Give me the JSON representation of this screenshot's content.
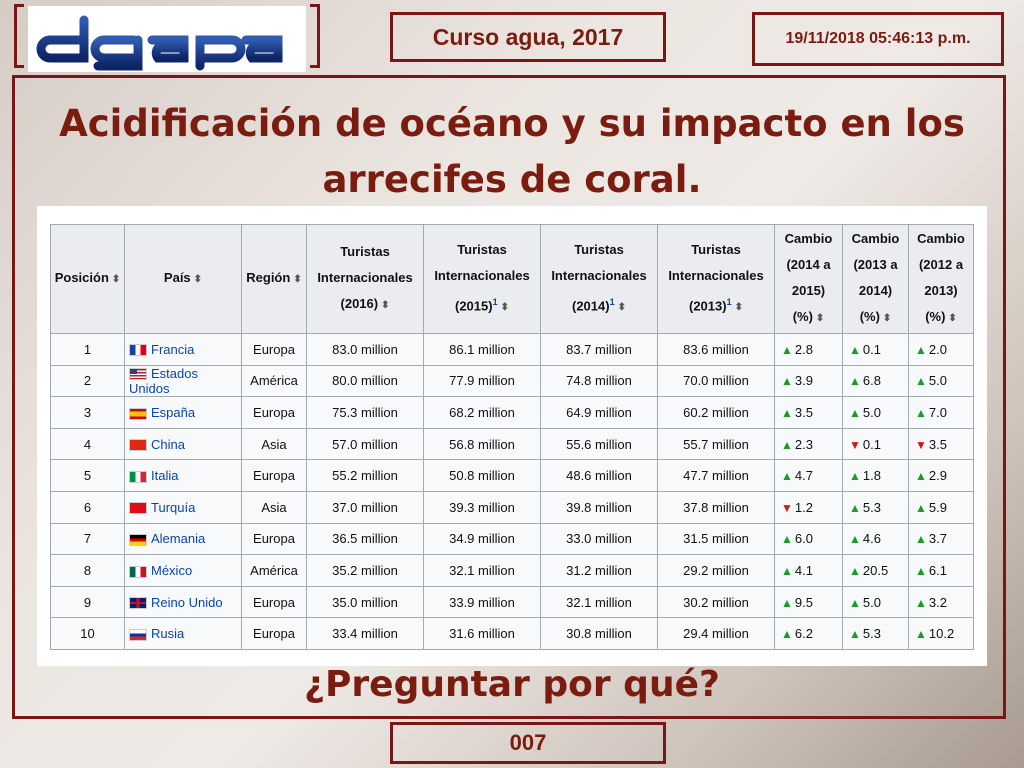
{
  "header": {
    "logo_text": "dgapa",
    "course": "Curso agua, 2017",
    "datetime": "19/11/2018 05:46:13 p.m."
  },
  "title": "Acidificación de océano y su impacto en los arrecifes de coral.",
  "table": {
    "columns": [
      {
        "label": "Posición"
      },
      {
        "label": "País"
      },
      {
        "label": "Región"
      },
      {
        "label": "Turistas Internacionales (2016)"
      },
      {
        "label": "Turistas Internacionales (2015)",
        "sup": "1"
      },
      {
        "label": "Turistas Internacionales (2014)",
        "sup": "1"
      },
      {
        "label": "Turistas Internacionales (2013)",
        "sup": "1"
      },
      {
        "label": "Cambio (2014 a 2015) (%)"
      },
      {
        "label": "Cambio (2013 a 2014) (%)"
      },
      {
        "label": "Cambio (2012 a 2013) (%)"
      }
    ],
    "rows": [
      {
        "pos": "1",
        "pais": "Francia",
        "flag": "fr",
        "region": "Europa",
        "t2016": "83.0 million",
        "t2015": "86.1 million",
        "t2014": "83.7 million",
        "t2013": "83.6 million",
        "c1": {
          "dir": "up",
          "v": "2.8"
        },
        "c2": {
          "dir": "up",
          "v": "0.1"
        },
        "c3": {
          "dir": "up",
          "v": "2.0"
        }
      },
      {
        "pos": "2",
        "pais": "Estados Unidos",
        "flag": "us",
        "region": "América",
        "t2016": "80.0 million",
        "t2015": "77.9 million",
        "t2014": "74.8 million",
        "t2013": "70.0 million",
        "c1": {
          "dir": "up",
          "v": "3.9"
        },
        "c2": {
          "dir": "up",
          "v": "6.8"
        },
        "c3": {
          "dir": "up",
          "v": "5.0"
        }
      },
      {
        "pos": "3",
        "pais": "España",
        "flag": "es",
        "region": "Europa",
        "t2016": "75.3 million",
        "t2015": "68.2 million",
        "t2014": "64.9 million",
        "t2013": "60.2 million",
        "c1": {
          "dir": "up",
          "v": "3.5"
        },
        "c2": {
          "dir": "up",
          "v": "5.0"
        },
        "c3": {
          "dir": "up",
          "v": "7.0"
        }
      },
      {
        "pos": "4",
        "pais": "China",
        "flag": "cn",
        "region": "Asia",
        "t2016": "57.0 million",
        "t2015": "56.8 million",
        "t2014": "55.6 million",
        "t2013": "55.7 million",
        "c1": {
          "dir": "up",
          "v": "2.3"
        },
        "c2": {
          "dir": "down",
          "v": "0.1"
        },
        "c3": {
          "dir": "down",
          "v": "3.5"
        }
      },
      {
        "pos": "5",
        "pais": "Italia",
        "flag": "it",
        "region": "Europa",
        "t2016": "55.2 million",
        "t2015": "50.8 million",
        "t2014": "48.6 million",
        "t2013": "47.7 million",
        "c1": {
          "dir": "up",
          "v": "4.7"
        },
        "c2": {
          "dir": "up",
          "v": "1.8"
        },
        "c3": {
          "dir": "up",
          "v": "2.9"
        }
      },
      {
        "pos": "6",
        "pais": "Turquía",
        "flag": "tr",
        "region": "Asia",
        "t2016": "37.0 million",
        "t2015": "39.3 million",
        "t2014": "39.8 million",
        "t2013": "37.8 million",
        "c1": {
          "dir": "down",
          "v": "1.2"
        },
        "c2": {
          "dir": "up",
          "v": "5.3"
        },
        "c3": {
          "dir": "up",
          "v": "5.9"
        }
      },
      {
        "pos": "7",
        "pais": "Alemania",
        "flag": "de",
        "region": "Europa",
        "t2016": "36.5 million",
        "t2015": "34.9 million",
        "t2014": "33.0 million",
        "t2013": "31.5 million",
        "c1": {
          "dir": "up",
          "v": "6.0"
        },
        "c2": {
          "dir": "up",
          "v": "4.6"
        },
        "c3": {
          "dir": "up",
          "v": "3.7"
        }
      },
      {
        "pos": "8",
        "pais": "México",
        "flag": "mx",
        "region": "América",
        "t2016": "35.2 million",
        "t2015": "32.1 million",
        "t2014": "31.2 million",
        "t2013": "29.2 million",
        "c1": {
          "dir": "up",
          "v": "4.1"
        },
        "c2": {
          "dir": "up",
          "v": "20.5"
        },
        "c3": {
          "dir": "up",
          "v": "6.1"
        }
      },
      {
        "pos": "9",
        "pais": "Reino Unido",
        "flag": "gb",
        "region": "Europa",
        "t2016": "35.0 million",
        "t2015": "33.9 million",
        "t2014": "32.1 million",
        "t2013": "30.2 million",
        "c1": {
          "dir": "up",
          "v": "9.5"
        },
        "c2": {
          "dir": "up",
          "v": "5.0"
        },
        "c3": {
          "dir": "up",
          "v": "3.2"
        }
      },
      {
        "pos": "10",
        "pais": "Rusia",
        "flag": "ru",
        "region": "Europa",
        "t2016": "33.4 million",
        "t2015": "31.6 million",
        "t2014": "30.8 million",
        "t2013": "29.4 million",
        "c1": {
          "dir": "up",
          "v": "6.2"
        },
        "c2": {
          "dir": "up",
          "v": "5.3"
        },
        "c3": {
          "dir": "up",
          "v": "10.2"
        }
      }
    ]
  },
  "question": "¿Preguntar por qué?",
  "slide_number": "007",
  "colors": {
    "accent": "#7b1616",
    "title": "#7a1c10",
    "up": "#1a9c27",
    "down": "#d0191a",
    "link": "#0645ad"
  }
}
